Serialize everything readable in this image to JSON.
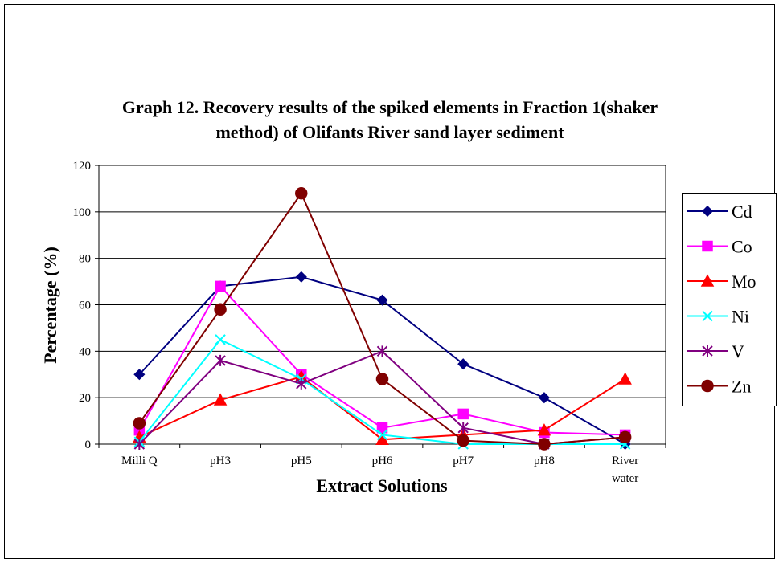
{
  "chart_data": {
    "type": "line",
    "title": "Graph 12. Recovery results of the spiked elements in Fraction 1(shaker method) of Olifants River sand layer sediment",
    "x_label": "Extract Solutions",
    "y_label": "Percentage (%)",
    "categories": [
      "Milli Q",
      "pH3",
      "pH5",
      "pH6",
      "pH7",
      "pH8",
      "River water"
    ],
    "series": [
      {
        "name": "Cd",
        "color": "#000080",
        "marker": "diamond",
        "values": [
          30,
          68,
          72,
          62,
          34.5,
          20,
          0
        ]
      },
      {
        "name": "Co",
        "color": "#FF00FF",
        "marker": "square",
        "values": [
          6,
          68,
          30,
          7,
          13,
          5,
          4
        ]
      },
      {
        "name": "Mo",
        "color": "#FF0000",
        "marker": "triangle",
        "values": [
          3,
          19,
          29,
          2,
          4,
          6,
          28
        ]
      },
      {
        "name": "Ni",
        "color": "#00FFFF",
        "marker": "x",
        "values": [
          1,
          45,
          28,
          4,
          0,
          0,
          0
        ]
      },
      {
        "name": "V",
        "color": "#800080",
        "marker": "star",
        "values": [
          0,
          36,
          26,
          40,
          7,
          0,
          3
        ]
      },
      {
        "name": "Zn",
        "color": "#800000",
        "marker": "circle",
        "values": [
          9,
          58,
          108,
          28,
          1.5,
          0,
          3
        ]
      }
    ],
    "ylim": [
      0,
      120
    ],
    "yticks": [
      0,
      20,
      40,
      60,
      80,
      100,
      120
    ],
    "grid": true,
    "legend": "right"
  }
}
